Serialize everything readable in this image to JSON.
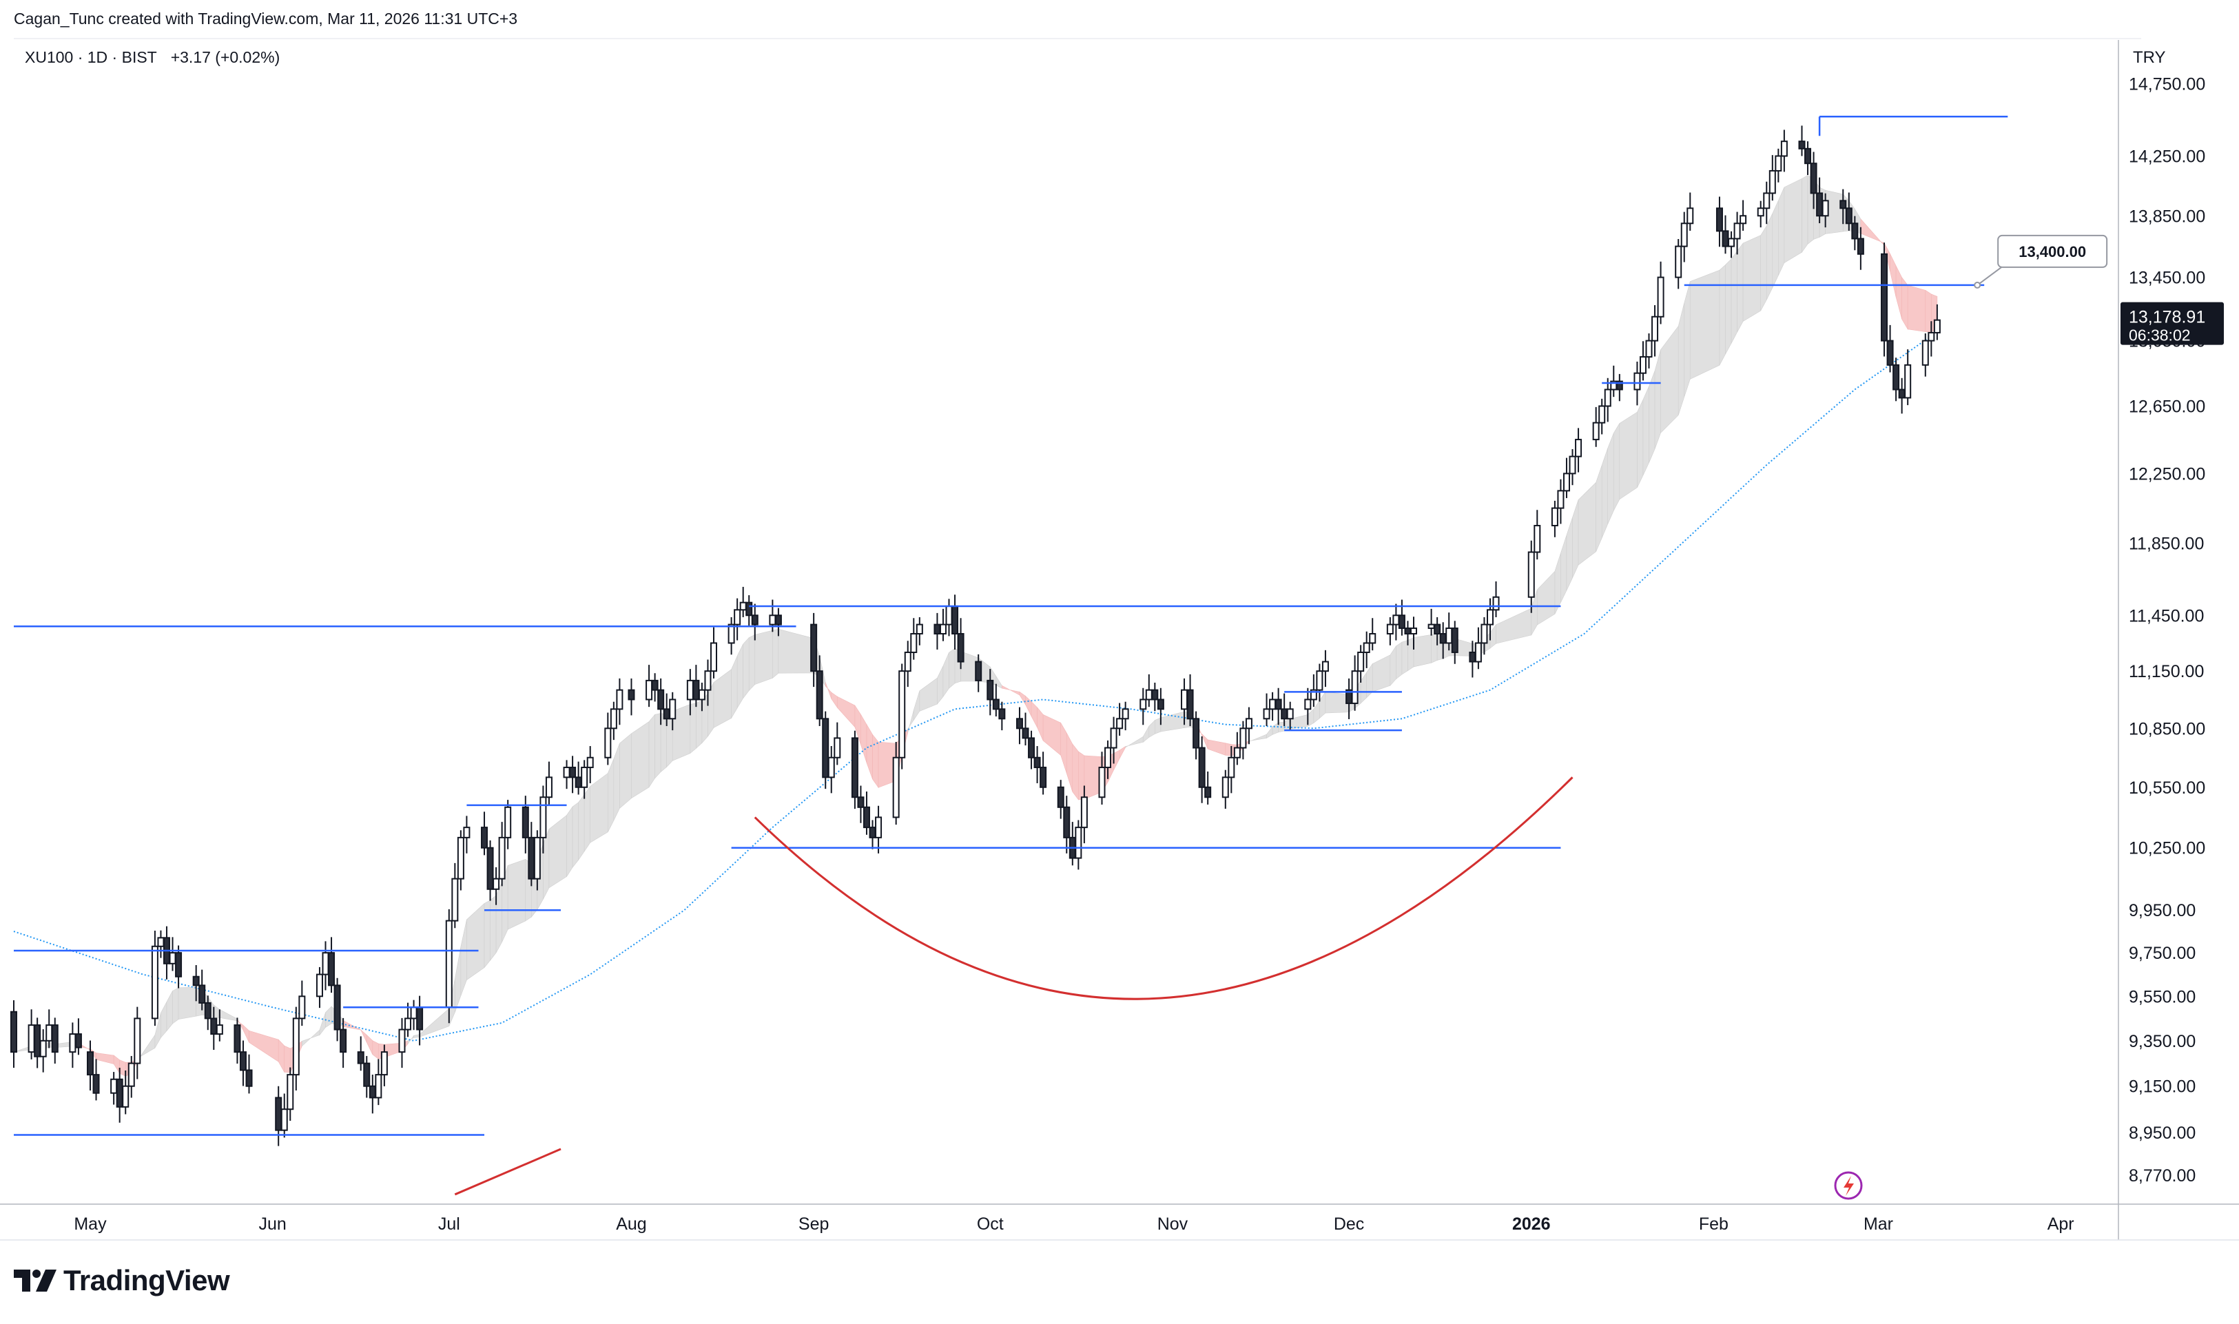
{
  "header": {
    "attribution": "Cagan_Tunc created with TradingView.com, Mar 11, 2026 11:31 UTC+3"
  },
  "symbol": {
    "label": "XU100 · 1D · BIST",
    "change": "+3.17 (+0.02%)"
  },
  "price_axis": {
    "currency": "TRY",
    "ticks": [
      "14,750.00",
      "14,250.00",
      "13,850.00",
      "13,450.00",
      "13,050.00",
      "12,650.00",
      "12,250.00",
      "11,850.00",
      "11,450.00",
      "11,150.00",
      "10,850.00",
      "10,550.00",
      "10,250.00",
      "9,950.00",
      "9,750.00",
      "9,550.00",
      "9,350.00",
      "9,150.00",
      "8,950.00",
      "8,770.00"
    ],
    "last_price": "13,178.91",
    "countdown": "06:38:02"
  },
  "time_axis": {
    "labels": [
      "May",
      "Jun",
      "Jul",
      "Aug",
      "Sep",
      "Oct",
      "Nov",
      "Dec",
      "2026",
      "Feb",
      "Mar",
      "Apr"
    ]
  },
  "annotation": {
    "callout": "13,400.00"
  },
  "branding": {
    "logo_text": "TradingView",
    "logo_icon": "tradingview-logo-icon",
    "bolt_icon": "lightning-icon"
  },
  "colors": {
    "up_candle": "#ffffff",
    "down_candle": "#2a2e39",
    "level_lines": "#2962ff",
    "arc": "#d32f2f",
    "ma_dotted": "#2196f3",
    "ribbon_up": "#e0e0e0",
    "ribbon_down": "#f8c8c8"
  },
  "chart_data": {
    "type": "candlestick",
    "symbol": "XU100",
    "interval": "1D",
    "exchange": "BIST",
    "y_scale": "log",
    "ylim": [
      8650,
      15050
    ],
    "x_range": [
      "2025-04-18",
      "2026-04-10"
    ],
    "grid": false,
    "months": [
      {
        "label": "May",
        "date": "2025-05-01"
      },
      {
        "label": "Jun",
        "date": "2025-06-01"
      },
      {
        "label": "Jul",
        "date": "2025-07-01"
      },
      {
        "label": "Aug",
        "date": "2025-08-01"
      },
      {
        "label": "Sep",
        "date": "2025-09-01"
      },
      {
        "label": "Oct",
        "date": "2025-10-01"
      },
      {
        "label": "Nov",
        "date": "2025-11-01"
      },
      {
        "label": "Dec",
        "date": "2025-12-01"
      },
      {
        "label": "2026",
        "date": "2026-01-01"
      },
      {
        "label": "Feb",
        "date": "2026-02-01"
      },
      {
        "label": "Mar",
        "date": "2026-03-01"
      },
      {
        "label": "Apr",
        "date": "2026-04-01"
      }
    ],
    "ohlc_by_month": [
      {
        "start": "2025-04-18",
        "path": [
          9480,
          9300,
          9420,
          9280,
          9350,
          9420,
          9300,
          9380,
          9320
        ]
      },
      {
        "start": "2025-05-01",
        "path": [
          9300,
          9200,
          9120,
          9180,
          9060,
          9150,
          9250,
          9450,
          9780,
          9820,
          9700,
          9750,
          9640,
          9600,
          9520,
          9450,
          9380,
          9420,
          9300,
          9220,
          9150
        ]
      },
      {
        "start": "2025-06-01",
        "path": [
          9100,
          8960,
          9050,
          9200,
          9450,
          9550,
          9650,
          9750,
          9600,
          9400,
          9300,
          9250,
          9150,
          9100,
          9200,
          9300,
          9400,
          9450,
          9500,
          9400
        ]
      },
      {
        "start": "2025-07-01",
        "path": [
          9500,
          9900,
          10100,
          10300,
          10350,
          10250,
          10050,
          10100,
          10300,
          10450,
          10300,
          10100,
          10300,
          10500,
          10600,
          10650,
          10600,
          10550,
          10650,
          10700,
          10850,
          10950,
          11050
        ]
      },
      {
        "start": "2025-08-01",
        "path": [
          11050,
          11000,
          11100,
          11050,
          10950,
          10900,
          11000,
          11100,
          11000,
          11050,
          11150,
          11300,
          11400,
          11480,
          11520,
          11450,
          11400,
          11450,
          11400
        ]
      },
      {
        "start": "2025-09-01",
        "path": [
          11400,
          11150,
          10900,
          10600,
          10700,
          10800,
          10500,
          10450,
          10350,
          10300,
          10400,
          10700,
          11150,
          11250,
          11350,
          11400,
          11350,
          11400,
          11500,
          11350,
          11200,
          11100
        ]
      },
      {
        "start": "2025-10-01",
        "path": [
          11100,
          11000,
          10950,
          10900,
          10850,
          10800,
          10700,
          10650,
          10550,
          10450,
          10300,
          10200,
          10350,
          10500,
          10650,
          10750,
          10850,
          10900,
          10950,
          11000,
          11050,
          11000,
          10950
        ]
      },
      {
        "start": "2025-11-01",
        "path": [
          10950,
          11050,
          10900,
          10750,
          10550,
          10500,
          10600,
          10700,
          10750,
          10850,
          10900,
          10950,
          11000,
          10950,
          10900,
          10950,
          11000,
          11050,
          11150,
          11200
        ]
      },
      {
        "start": "2025-12-01",
        "path": [
          11050,
          10980,
          11150,
          11250,
          11300,
          11350,
          11400,
          11450,
          11380,
          11350,
          11380,
          11400,
          11350,
          11300,
          11380,
          11250,
          11200,
          11300,
          11400,
          11480,
          11550
        ]
      },
      {
        "start": "2026-01-01",
        "path": [
          11550,
          11800,
          11950,
          12050,
          12150,
          12250,
          12350,
          12450,
          12550,
          12650,
          12750,
          12800,
          12750,
          12850,
          12950,
          13050,
          13200,
          13450,
          13650,
          13800,
          13900
        ]
      },
      {
        "start": "2026-02-01",
        "path": [
          13900,
          13750,
          13650,
          13700,
          13800,
          13850,
          13900,
          14000,
          14150,
          14250,
          14350,
          14300,
          14200,
          14000,
          13850,
          13950,
          13900,
          13800,
          13700,
          13600
        ]
      },
      {
        "start": "2026-03-01",
        "path": [
          13600,
          13050,
          12900,
          12750,
          12700,
          12900,
          13050,
          13100,
          13178.91
        ]
      }
    ],
    "last": 13178.91,
    "horizontal_levels": [
      {
        "price": 14520,
        "from": "2026-02-19",
        "to": "2026-03-23"
      },
      {
        "price": 13400,
        "from": "2026-01-27",
        "to": "2026-03-19",
        "label": "13,400.00"
      },
      {
        "price": 12790,
        "from": "2026-01-13",
        "to": "2026-01-23"
      },
      {
        "price": 11500,
        "from": "2025-08-21",
        "to": "2026-01-06"
      },
      {
        "price": 11390,
        "from": "2025-04-18",
        "to": "2025-08-29"
      },
      {
        "price": 11040,
        "from": "2025-11-20",
        "to": "2025-12-10"
      },
      {
        "price": 10840,
        "from": "2025-11-20",
        "to": "2025-12-10"
      },
      {
        "price": 10460,
        "from": "2025-07-04",
        "to": "2025-07-21"
      },
      {
        "price": 10250,
        "from": "2025-08-18",
        "to": "2026-01-06"
      },
      {
        "price": 9950,
        "from": "2025-07-07",
        "to": "2025-07-20"
      },
      {
        "price": 9760,
        "from": "2025-04-18",
        "to": "2025-07-06"
      },
      {
        "price": 9500,
        "from": "2025-06-13",
        "to": "2025-07-06"
      },
      {
        "price": 8940,
        "from": "2025-04-18",
        "to": "2025-07-07"
      }
    ],
    "arc": {
      "from": [
        "2025-08-22",
        10400
      ],
      "bottom": [
        "2025-10-29",
        9540
      ],
      "to": [
        "2026-01-08",
        10600
      ]
    },
    "trend_line": {
      "from": [
        "2025-07-02",
        8690
      ],
      "to": [
        "2025-07-20",
        8880
      ]
    },
    "ma_dotted_anchors": [
      {
        "date": "2025-04-18",
        "value": 9850
      },
      {
        "date": "2025-05-10",
        "value": 9650
      },
      {
        "date": "2025-06-01",
        "value": 9500
      },
      {
        "date": "2025-06-25",
        "value": 9350
      },
      {
        "date": "2025-07-10",
        "value": 9430
      },
      {
        "date": "2025-07-25",
        "value": 9650
      },
      {
        "date": "2025-08-10",
        "value": 9950
      },
      {
        "date": "2025-08-25",
        "value": 10350
      },
      {
        "date": "2025-09-10",
        "value": 10750
      },
      {
        "date": "2025-09-25",
        "value": 10950
      },
      {
        "date": "2025-10-10",
        "value": 11000
      },
      {
        "date": "2025-10-25",
        "value": 10950
      },
      {
        "date": "2025-11-10",
        "value": 10870
      },
      {
        "date": "2025-11-25",
        "value": 10850
      },
      {
        "date": "2025-12-10",
        "value": 10900
      },
      {
        "date": "2025-12-25",
        "value": 11050
      },
      {
        "date": "2026-01-10",
        "value": 11350
      },
      {
        "date": "2026-01-25",
        "value": 11800
      },
      {
        "date": "2026-02-10",
        "value": 12300
      },
      {
        "date": "2026-02-25",
        "value": 12750
      },
      {
        "date": "2026-03-10",
        "value": 13080
      }
    ]
  }
}
